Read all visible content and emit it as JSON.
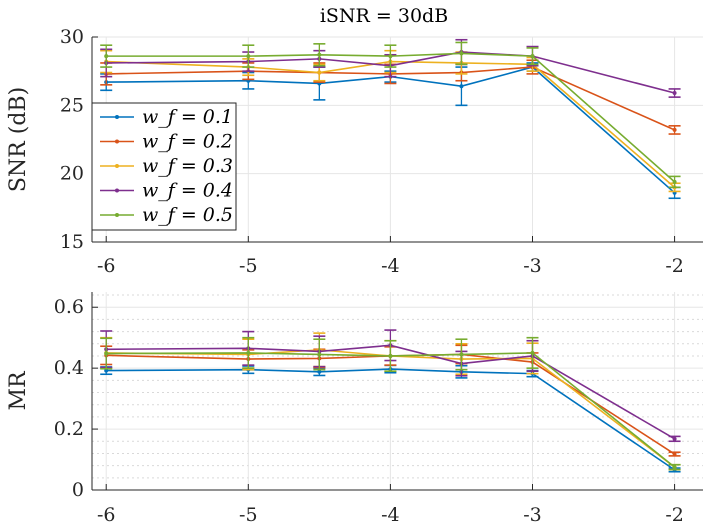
{
  "title": "iSNR = 30dB",
  "colors": {
    "wf01": "#0072BD",
    "wf02": "#D95319",
    "wf03": "#EDB120",
    "wf04": "#7E2F8E",
    "wf05": "#77AC30",
    "grid": "#e6e6e6",
    "axis": "#262626"
  },
  "legend": [
    "w_f = 0.1",
    "w_f = 0.2",
    "w_f = 0.3",
    "w_f = 0.4",
    "w_f = 0.5"
  ],
  "chart_data": [
    {
      "type": "line",
      "title": "iSNR = 30dB",
      "xlabel": "",
      "ylabel": "SNR (dB)",
      "xlim": [
        -6.1,
        -1.8
      ],
      "ylim": [
        15,
        30
      ],
      "yticks": [
        "15",
        "20",
        "25",
        "30"
      ],
      "xticks": [
        "-6",
        "-5",
        "-4",
        "-3",
        "-2"
      ],
      "x": [
        -6,
        -5,
        -4.5,
        -4,
        -3.5,
        -3,
        -2
      ],
      "legend_location": "left",
      "series": [
        {
          "name": "w_f = 0.1",
          "color_key": "wf01",
          "values": [
            26.7,
            26.8,
            26.6,
            27.1,
            26.4,
            27.8,
            18.6
          ],
          "errors": [
            0.6,
            0.6,
            1.2,
            0.4,
            1.4,
            0.3,
            0.4
          ]
        },
        {
          "name": "w_f = 0.2",
          "color_key": "wf02",
          "values": [
            27.3,
            27.5,
            27.4,
            27.3,
            27.4,
            27.8,
            23.2
          ],
          "errors": [
            0.8,
            0.6,
            0.7,
            0.7,
            0.6,
            0.5,
            0.3
          ]
        },
        {
          "name": "w_f = 0.3",
          "color_key": "wf03",
          "values": [
            28.2,
            27.8,
            27.4,
            28.2,
            28.1,
            28.0,
            19.0
          ],
          "errors": [
            0.8,
            0.6,
            0.6,
            0.8,
            0.8,
            0.5,
            0.3
          ]
        },
        {
          "name": "w_f = 0.4",
          "color_key": "wf04",
          "values": [
            28.1,
            28.2,
            28.4,
            27.9,
            28.9,
            28.6,
            25.9
          ],
          "errors": [
            1.0,
            0.7,
            0.6,
            0.8,
            0.9,
            0.7,
            0.3
          ]
        },
        {
          "name": "w_f = 0.5",
          "color_key": "wf05",
          "values": [
            28.6,
            28.6,
            28.7,
            28.6,
            28.8,
            28.6,
            19.4
          ],
          "errors": [
            0.8,
            0.8,
            0.8,
            0.8,
            0.8,
            0.6,
            0.4
          ]
        }
      ]
    },
    {
      "type": "line",
      "title": "",
      "xlabel": "",
      "ylabel": "MR",
      "xlim": [
        -6.1,
        -1.8
      ],
      "ylim": [
        0,
        0.65
      ],
      "yticks": [
        "0",
        "0.2",
        "0.4",
        "0.6"
      ],
      "xticks": [
        "-6",
        "-5",
        "-4",
        "-3",
        "-2"
      ],
      "x": [
        -6,
        -5,
        -4.5,
        -4,
        -3.5,
        -3,
        -2
      ],
      "series": [
        {
          "name": "w_f = 0.1",
          "color_key": "wf01",
          "values": [
            0.392,
            0.395,
            0.388,
            0.397,
            0.388,
            0.382,
            0.066
          ],
          "errors": [
            0.012,
            0.012,
            0.012,
            0.012,
            0.02,
            0.01,
            0.006
          ]
        },
        {
          "name": "w_f = 0.2",
          "color_key": "wf02",
          "values": [
            0.442,
            0.43,
            0.432,
            0.44,
            0.445,
            0.42,
            0.118
          ],
          "errors": [
            0.03,
            0.03,
            0.03,
            0.03,
            0.03,
            0.03,
            0.006
          ]
        },
        {
          "name": "w_f = 0.3",
          "color_key": "wf03",
          "values": [
            0.45,
            0.445,
            0.46,
            0.44,
            0.43,
            0.432,
            0.075
          ],
          "errors": [
            0.05,
            0.05,
            0.055,
            0.05,
            0.05,
            0.05,
            0.008
          ]
        },
        {
          "name": "w_f = 0.4",
          "color_key": "wf04",
          "values": [
            0.462,
            0.465,
            0.455,
            0.475,
            0.415,
            0.44,
            0.168
          ],
          "errors": [
            0.06,
            0.055,
            0.05,
            0.05,
            0.04,
            0.05,
            0.008
          ]
        },
        {
          "name": "w_f = 0.5",
          "color_key": "wf05",
          "values": [
            0.448,
            0.45,
            0.445,
            0.44,
            0.445,
            0.45,
            0.075
          ],
          "errors": [
            0.05,
            0.05,
            0.05,
            0.05,
            0.05,
            0.05,
            0.008
          ]
        }
      ]
    }
  ]
}
